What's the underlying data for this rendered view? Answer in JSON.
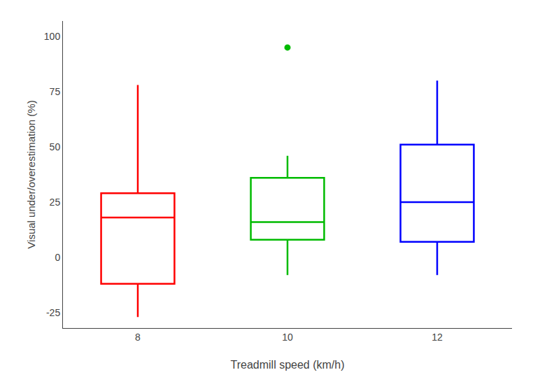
{
  "chart_data": {
    "type": "box",
    "categories": [
      "8",
      "10",
      "12"
    ],
    "colors": [
      "#ff0000",
      "#00bb00",
      "#0000ff"
    ],
    "q1": [
      -12,
      8,
      7
    ],
    "median": [
      18,
      16,
      25
    ],
    "q3": [
      29,
      36,
      51
    ],
    "whisker_low": [
      -27,
      -8,
      -8
    ],
    "whisker_high": [
      78,
      46,
      80
    ],
    "outliers": [
      [],
      [
        95
      ],
      []
    ],
    "xlabel": "Treadmill speed (km/h)",
    "ylabel": "Visual under/overestimation (%)",
    "ylim": [
      -32,
      107
    ],
    "yticks": [
      -25,
      0,
      25,
      50,
      75,
      100
    ],
    "grid": false
  }
}
